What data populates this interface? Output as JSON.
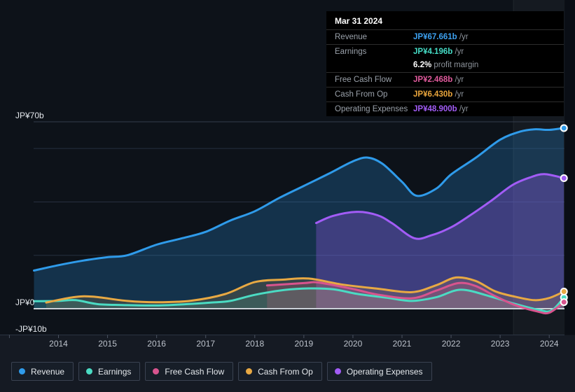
{
  "tooltip": {
    "date": "Mar 31 2024",
    "rows": [
      {
        "label": "Revenue",
        "value": "JP¥67.661b",
        "suffix": " /yr",
        "color": "#3da1f0",
        "sep": true
      },
      {
        "label": "Earnings",
        "value": "JP¥4.196b",
        "suffix": " /yr",
        "color": "#45dcc6",
        "sep": true
      },
      {
        "label": "",
        "value": "6.2%",
        "suffix": " profit margin",
        "color": "#ffffff",
        "sep": false
      },
      {
        "label": "Free Cash Flow",
        "value": "JP¥2.468b",
        "suffix": " /yr",
        "color": "#e05a9c",
        "sep": true
      },
      {
        "label": "Cash From Op",
        "value": "JP¥6.430b",
        "suffix": " /yr",
        "color": "#e9a53c",
        "sep": true
      },
      {
        "label": "Operating Expenses",
        "value": "JP¥48.900b",
        "suffix": " /yr",
        "color": "#a25cf6",
        "sep": true
      }
    ]
  },
  "legend": [
    {
      "key": "revenue",
      "label": "Revenue",
      "color": "#2f9bea"
    },
    {
      "key": "earnings",
      "label": "Earnings",
      "color": "#4bdbc3"
    },
    {
      "key": "free_cash_flow",
      "label": "Free Cash Flow",
      "color": "#d8548e"
    },
    {
      "key": "cash_from_op",
      "label": "Cash From Op",
      "color": "#e8a943"
    },
    {
      "key": "operating_expenses",
      "label": "Operating Expenses",
      "color": "#a25cf6"
    }
  ],
  "chart_data": {
    "type": "area",
    "title": "Earnings and Revenue History",
    "x_axis": {
      "tick_years": [
        2013,
        2014,
        2015,
        2016,
        2017,
        2018,
        2019,
        2020,
        2021,
        2022,
        2023,
        2024
      ],
      "labels": [
        "2014",
        "2015",
        "2016",
        "2017",
        "2018",
        "2019",
        "2020",
        "2021",
        "2022",
        "2023",
        "2024"
      ],
      "range_years": [
        2013.5,
        2024.3
      ]
    },
    "y_axis": {
      "unit": "JP¥ billions",
      "labeled_lines": [
        {
          "value": 70,
          "label": "JP¥70b"
        },
        {
          "value": 0,
          "label": "JP¥0"
        },
        {
          "value": -10,
          "label": "-JP¥10b"
        }
      ],
      "minor_gridlines": [
        60,
        40,
        20
      ],
      "ylim": [
        -10,
        75
      ]
    },
    "highlight_band_years": [
      2023.27,
      2024.3
    ],
    "series": [
      {
        "key": "revenue",
        "name": "Revenue",
        "color": "#2f9bea",
        "fill_opacity": 0.24,
        "points": [
          [
            2013.5,
            14.3
          ],
          [
            2014,
            16.3
          ],
          [
            2014.5,
            18.0
          ],
          [
            2015,
            19.3
          ],
          [
            2015.4,
            20.0
          ],
          [
            2016,
            24.0
          ],
          [
            2016.5,
            26.3
          ],
          [
            2017,
            28.8
          ],
          [
            2017.5,
            33.0
          ],
          [
            2018,
            36.5
          ],
          [
            2018.5,
            41.5
          ],
          [
            2019,
            46.0
          ],
          [
            2019.5,
            50.5
          ],
          [
            2020,
            55.2
          ],
          [
            2020.3,
            56.6
          ],
          [
            2020.6,
            54.3
          ],
          [
            2021,
            47.5
          ],
          [
            2021.3,
            42.3
          ],
          [
            2021.7,
            45.0
          ],
          [
            2022,
            50.3
          ],
          [
            2022.5,
            56.5
          ],
          [
            2023,
            63.3
          ],
          [
            2023.4,
            66.3
          ],
          [
            2023.7,
            67.2
          ],
          [
            2024,
            67.0
          ],
          [
            2024.3,
            67.661
          ]
        ]
      },
      {
        "key": "earnings",
        "name": "Earnings",
        "color": "#4bdbc3",
        "fill_opacity": 0.16,
        "points": [
          [
            2013.5,
            2.8
          ],
          [
            2014,
            2.9
          ],
          [
            2014.35,
            3.2
          ],
          [
            2014.8,
            1.7
          ],
          [
            2015.3,
            1.4
          ],
          [
            2016,
            1.2
          ],
          [
            2016.6,
            1.7
          ],
          [
            2017.1,
            2.3
          ],
          [
            2017.5,
            2.9
          ],
          [
            2018,
            5.2
          ],
          [
            2018.6,
            7.0
          ],
          [
            2019.1,
            7.6
          ],
          [
            2019.6,
            7.3
          ],
          [
            2020.1,
            5.5
          ],
          [
            2020.7,
            4.1
          ],
          [
            2021.2,
            2.9
          ],
          [
            2021.7,
            4.3
          ],
          [
            2022.2,
            7.1
          ],
          [
            2022.8,
            4.6
          ],
          [
            2023.3,
            1.8
          ],
          [
            2023.8,
            -0.5
          ],
          [
            2024.05,
            -0.65
          ],
          [
            2024.3,
            4.196
          ]
        ]
      },
      {
        "key": "free_cash_flow",
        "name": "Free Cash Flow",
        "color": "#d8548e",
        "fill_opacity": 0.22,
        "points": [
          [
            2018.25,
            8.7
          ],
          [
            2019,
            9.6
          ],
          [
            2019.3,
            9.8
          ],
          [
            2020,
            7.4
          ],
          [
            2020.5,
            5.3
          ],
          [
            2021.2,
            3.9
          ],
          [
            2021.7,
            6.8
          ],
          [
            2022.15,
            9.6
          ],
          [
            2022.5,
            8.5
          ],
          [
            2022.9,
            4.7
          ],
          [
            2023.3,
            1.4
          ],
          [
            2023.75,
            -1.0
          ],
          [
            2024,
            -1.5
          ],
          [
            2024.3,
            2.468
          ]
        ]
      },
      {
        "key": "cash_from_op",
        "name": "Cash From Op",
        "color": "#e8a943",
        "fill_opacity": 0.16,
        "points": [
          [
            2013.75,
            2.3
          ],
          [
            2014.3,
            4.3
          ],
          [
            2014.7,
            4.5
          ],
          [
            2015.4,
            2.9
          ],
          [
            2016,
            2.4
          ],
          [
            2016.7,
            3.0
          ],
          [
            2017.4,
            5.5
          ],
          [
            2018,
            10.0
          ],
          [
            2018.6,
            10.9
          ],
          [
            2019.1,
            11.3
          ],
          [
            2019.8,
            9.0
          ],
          [
            2020.5,
            7.5
          ],
          [
            2021.2,
            6.2
          ],
          [
            2021.7,
            8.8
          ],
          [
            2022.1,
            11.7
          ],
          [
            2022.5,
            10.4
          ],
          [
            2022.9,
            6.5
          ],
          [
            2023.3,
            4.5
          ],
          [
            2023.7,
            3.2
          ],
          [
            2024,
            4.0
          ],
          [
            2024.3,
            6.43
          ]
        ]
      },
      {
        "key": "operating_expenses",
        "name": "Operating Expenses",
        "color": "#a25cf6",
        "fill_opacity": 0.3,
        "points": [
          [
            2019.25,
            32.1
          ],
          [
            2019.6,
            34.8
          ],
          [
            2020.1,
            36.3
          ],
          [
            2020.5,
            35.0
          ],
          [
            2020.8,
            32.0
          ],
          [
            2021.25,
            26.4
          ],
          [
            2021.6,
            27.5
          ],
          [
            2022,
            30.5
          ],
          [
            2022.35,
            34.5
          ],
          [
            2022.8,
            40.2
          ],
          [
            2023.25,
            46.3
          ],
          [
            2023.6,
            49.1
          ],
          [
            2023.9,
            50.4
          ],
          [
            2024.3,
            48.9
          ]
        ]
      }
    ]
  }
}
